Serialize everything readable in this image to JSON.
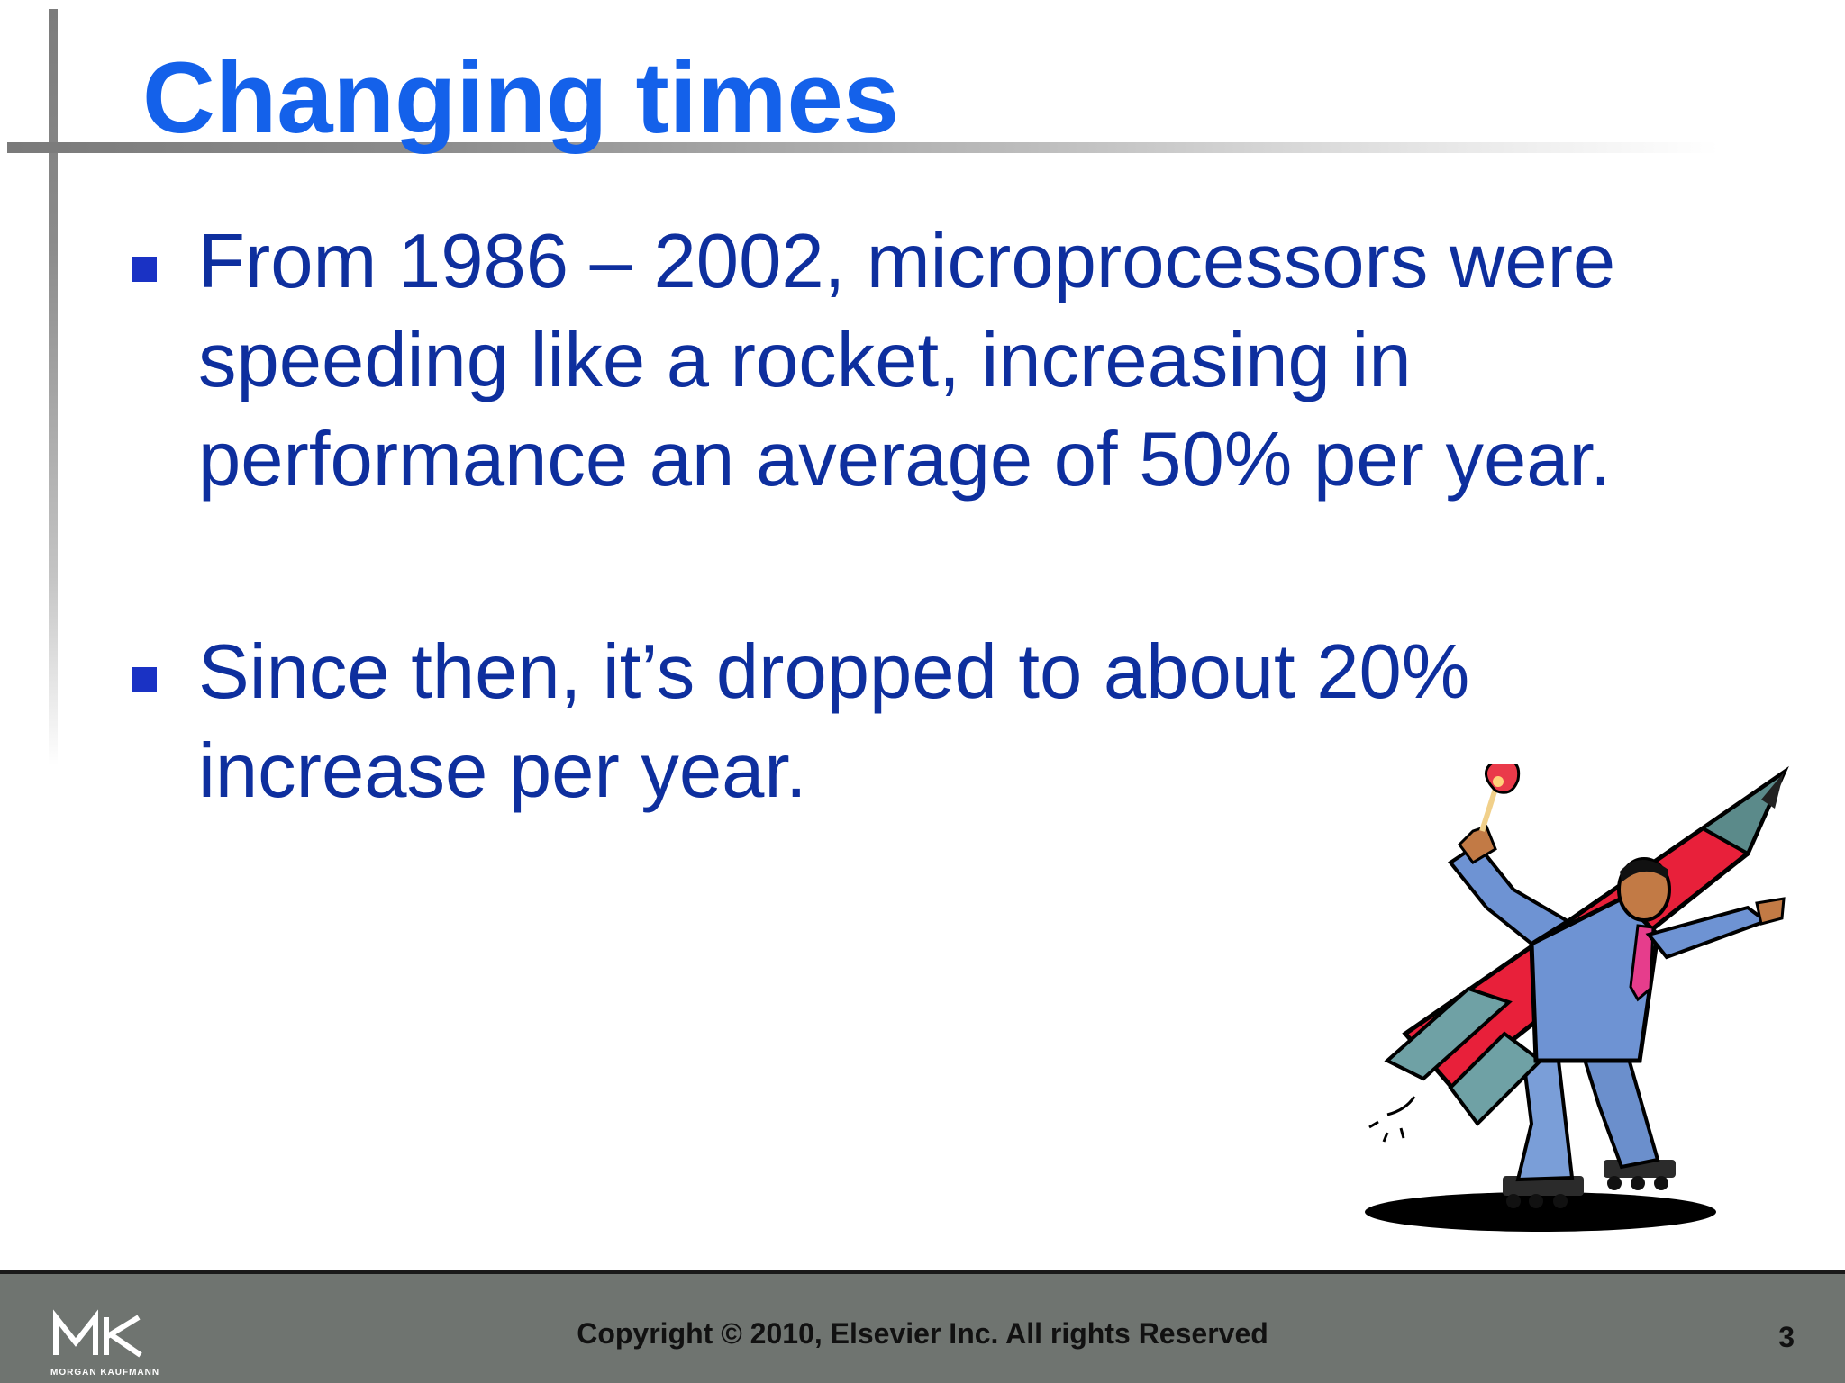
{
  "slide": {
    "title": "Changing times",
    "bullets": [
      "From 1986 – 2002, microprocessors were speeding like a rocket, increasing in performance an average of 50% per year.",
      "Since then, it’s dropped to about 20% increase per year."
    ],
    "illustration_icon": "man-riding-pencil-rocket-clipart"
  },
  "footer": {
    "logo_text": "MK",
    "logo_subtext": "MORGAN KAUFMANN",
    "copyright": "Copyright © 2010, Elsevier Inc. All rights Reserved",
    "page_number": "3"
  },
  "colors": {
    "title": "#1461ea",
    "body_text": "#0e2f9e",
    "bullet": "#1a32c4",
    "footer_bg": "#6f7470"
  }
}
